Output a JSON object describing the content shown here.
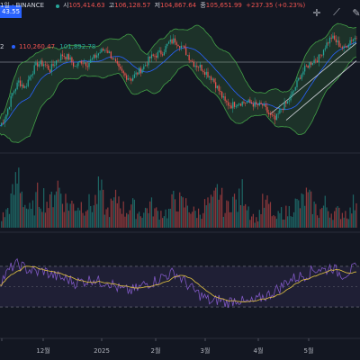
{
  "header": {
    "symbol_fragment": "1일 · BINANCE",
    "price_fragment": "43.55",
    "ohlc": {
      "open_label": "시",
      "open": "105,414.63",
      "high_label": "고",
      "high": "106,128.57",
      "low_label": "저",
      "low": "104,867.64",
      "close_label": "종",
      "close": "105,651.99",
      "change": "+237.35 (+0.23%)"
    },
    "bb_fragment": "2",
    "bb_values": [
      "110,260.47",
      "101,892.78"
    ]
  },
  "toolbar": [
    {
      "name": "cursor-icon",
      "glyph": "✛"
    },
    {
      "name": "trendline-icon",
      "glyph": "⟋"
    },
    {
      "name": "brush-icon",
      "glyph": "✎"
    }
  ],
  "colors": {
    "background": "#131722",
    "bull": "#26a69a",
    "bear": "#ef5350",
    "bb_fill": "rgba(76,175,80,0.18)",
    "bb_mid": "#2962ff",
    "bb_band": "#43a047",
    "rsi": "#7e57c2",
    "rsi_ma": "#e4c441"
  },
  "chart_data": {
    "type": "candlestick",
    "x_tick_labels": [
      "12월",
      "2025",
      "2월",
      "3월",
      "4월",
      "5월"
    ],
    "price_series": [
      76,
      80,
      87,
      91,
      89,
      94,
      97,
      97,
      95,
      98,
      100,
      99,
      96,
      98,
      97,
      99,
      101,
      102,
      99,
      95,
      93,
      92,
      94,
      96,
      99,
      100,
      101,
      104,
      105,
      103,
      100,
      97,
      96,
      94,
      92,
      88,
      84,
      83,
      84,
      84,
      84,
      83,
      83,
      80,
      78,
      82,
      84,
      88,
      93,
      96,
      98,
      99,
      103,
      106,
      104,
      102,
      105,
      106
    ],
    "volume_series": [
      1,
      2,
      4,
      7,
      3,
      2,
      4,
      4,
      3,
      6,
      4,
      3,
      3,
      3,
      3,
      3,
      5,
      2,
      3,
      4,
      2,
      3,
      2,
      2,
      3,
      2,
      2,
      2,
      4,
      3,
      3,
      2,
      2,
      3,
      3,
      5,
      2,
      4,
      3,
      5,
      2,
      1,
      3,
      3,
      1,
      2,
      2,
      3,
      3,
      4,
      3,
      2,
      3,
      2,
      2,
      2,
      2,
      4
    ],
    "rsi_series": [
      55,
      62,
      70,
      72,
      68,
      66,
      64,
      66,
      62,
      60,
      58,
      57,
      54,
      55,
      56,
      58,
      54,
      56,
      52,
      48,
      46,
      46,
      48,
      52,
      54,
      56,
      60,
      62,
      64,
      58,
      52,
      46,
      42,
      38,
      34,
      38,
      34,
      36,
      38,
      34,
      34,
      36,
      40,
      42,
      46,
      50,
      56,
      58,
      60,
      62,
      66,
      68,
      66,
      70,
      64,
      62,
      66,
      68
    ],
    "last_price_label": "105,651.99",
    "rsi_band": [
      30,
      70
    ]
  }
}
